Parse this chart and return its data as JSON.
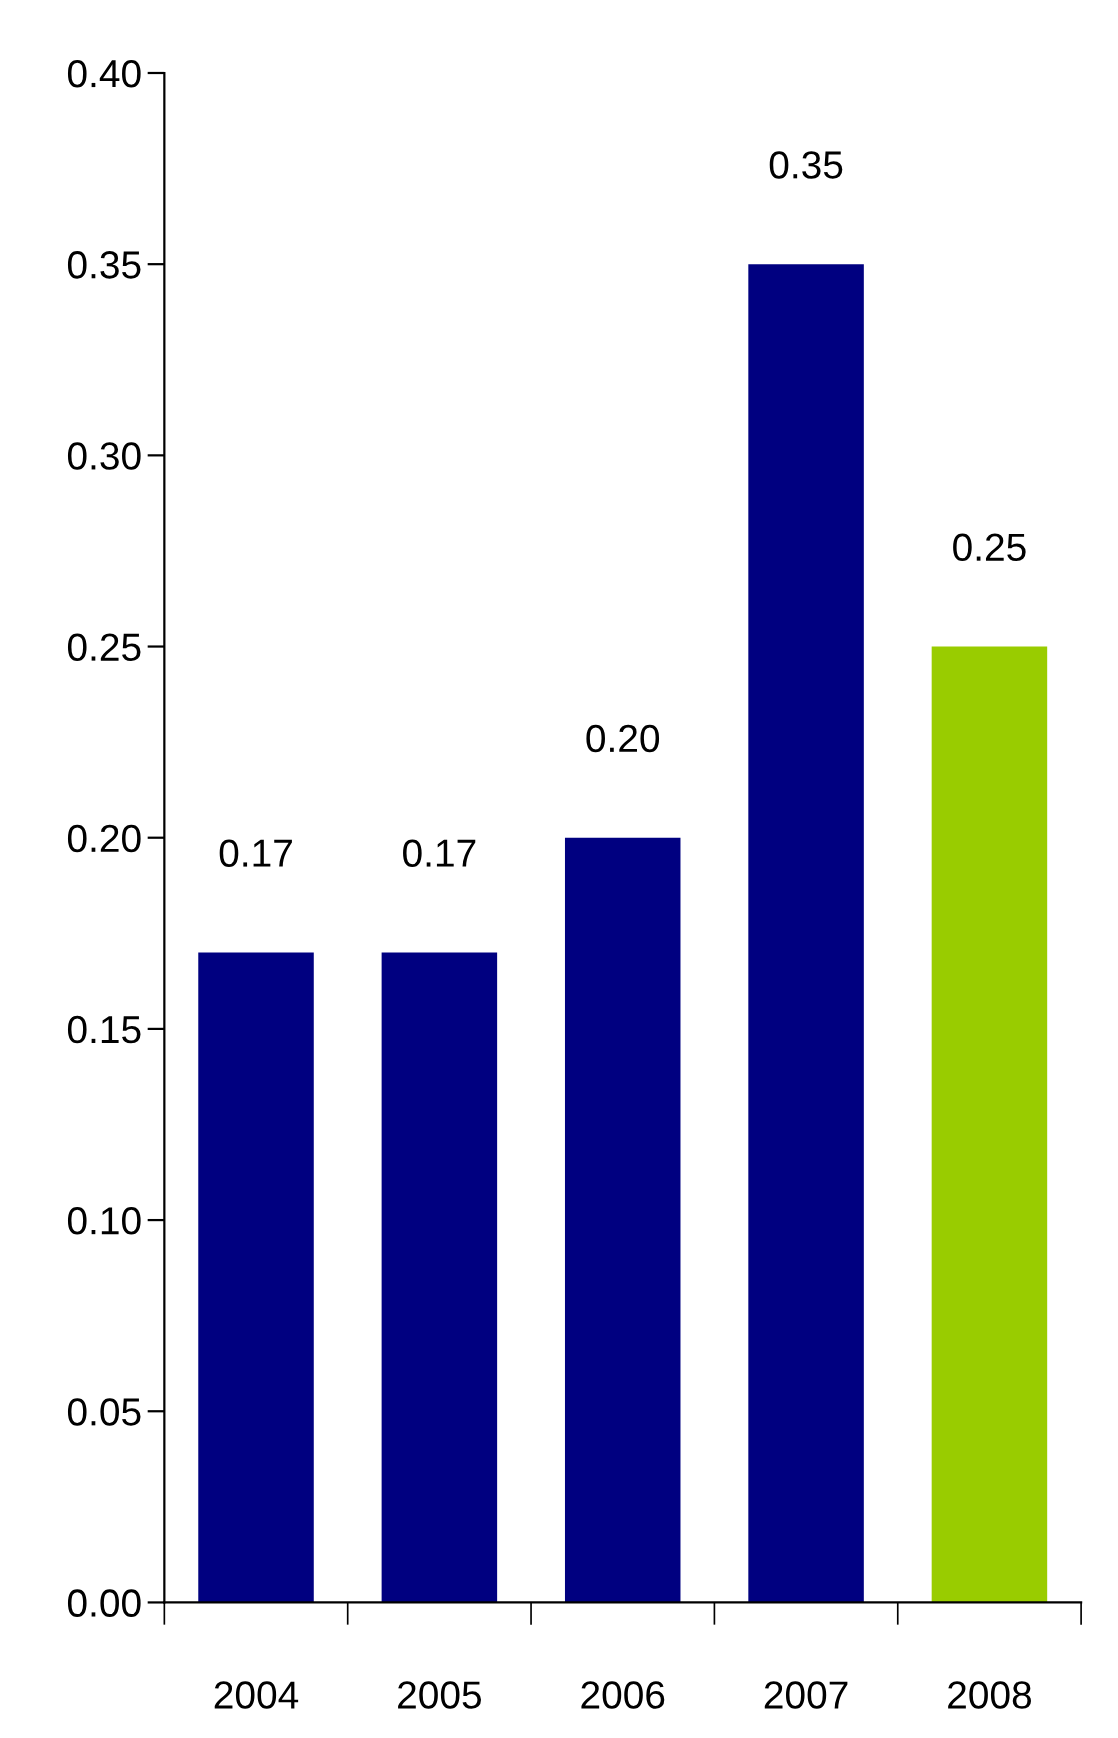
{
  "chart_data": {
    "type": "bar",
    "categories": [
      "2004",
      "2005",
      "2006",
      "2007",
      "2008"
    ],
    "values": [
      0.17,
      0.17,
      0.2,
      0.35,
      0.25
    ],
    "value_labels": [
      "0.17",
      "0.17",
      "0.20",
      "0.35",
      "0.25"
    ],
    "colors": [
      "#000080",
      "#000080",
      "#000080",
      "#000080",
      "#99cc00"
    ],
    "ylim": [
      0,
      0.4
    ],
    "yticks": [
      {
        "value": 0,
        "label": "0.00"
      },
      {
        "value": 0.05,
        "label": "0.05"
      },
      {
        "value": 0.1,
        "label": "0.10"
      },
      {
        "value": 0.15,
        "label": "0.15"
      },
      {
        "value": 0.2,
        "label": "0.20"
      },
      {
        "value": 0.25,
        "label": "0.25"
      },
      {
        "value": 0.3,
        "label": "0.30"
      },
      {
        "value": 0.35,
        "label": "0.35"
      },
      {
        "value": 0.4,
        "label": "0.40"
      }
    ],
    "grid": false,
    "legend": false
  }
}
